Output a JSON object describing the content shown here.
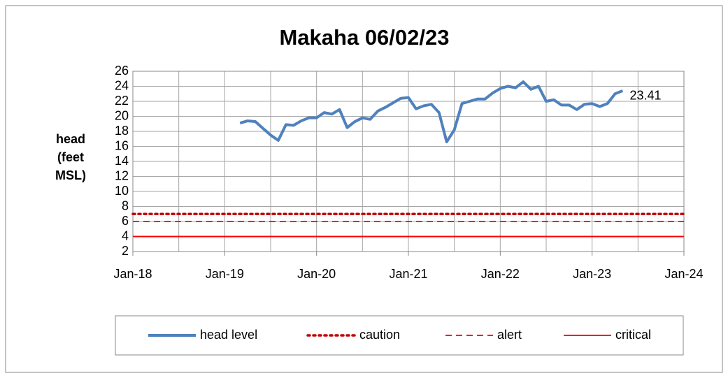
{
  "chart_data": {
    "type": "line",
    "title": "Makaha 06/02/23",
    "y_label": "head (feet MSL)",
    "x": [
      "2019-03",
      "2019-04",
      "2019-05",
      "2019-06",
      "2019-07",
      "2019-08",
      "2019-09",
      "2019-10",
      "2019-11",
      "2019-12",
      "2020-01",
      "2020-02",
      "2020-03",
      "2020-04",
      "2020-05",
      "2020-06",
      "2020-07",
      "2020-08",
      "2020-09",
      "2020-10",
      "2020-11",
      "2020-12",
      "2021-01",
      "2021-02",
      "2021-03",
      "2021-04",
      "2021-05",
      "2021-06",
      "2021-07",
      "2021-08",
      "2021-09",
      "2021-10",
      "2021-11",
      "2021-12",
      "2022-01",
      "2022-02",
      "2022-03",
      "2022-04",
      "2022-05",
      "2022-06",
      "2022-07",
      "2022-08",
      "2022-09",
      "2022-10",
      "2022-11",
      "2022-12",
      "2023-01",
      "2023-02",
      "2023-03",
      "2023-04",
      "2023-05"
    ],
    "series": [
      {
        "name": "head level",
        "color": "#4f81bd",
        "values": [
          19.1,
          19.4,
          19.3,
          18.4,
          17.5,
          16.8,
          18.9,
          18.8,
          19.4,
          19.8,
          19.8,
          20.5,
          20.3,
          20.9,
          18.5,
          19.3,
          19.8,
          19.6,
          20.7,
          21.2,
          21.8,
          22.4,
          22.5,
          21.0,
          21.4,
          21.6,
          20.5,
          16.6,
          18.2,
          21.7,
          22.0,
          22.3,
          22.3,
          23.1,
          23.7,
          24.0,
          23.8,
          24.6,
          23.6,
          24.0,
          22.0,
          22.2,
          21.5,
          21.5,
          20.9,
          21.6,
          21.7,
          21.3,
          21.7,
          23.0,
          23.41
        ]
      }
    ],
    "label_last_point": true,
    "thresholds": [
      {
        "name": "caution",
        "value": 7,
        "color": "#c00000",
        "style": "dotted"
      },
      {
        "name": "alert",
        "value": 6,
        "color": "#ff0000",
        "style": "dashed"
      },
      {
        "name": "critical",
        "value": 4,
        "color": "#ff0000",
        "style": "solid"
      }
    ],
    "xlim": [
      "2018-01",
      "2024-01"
    ],
    "xticks": [
      {
        "value": "2018-01",
        "label": "Jan-18"
      },
      {
        "value": "2019-01",
        "label": "Jan-19"
      },
      {
        "value": "2020-01",
        "label": "Jan-20"
      },
      {
        "value": "2021-01",
        "label": "Jan-21"
      },
      {
        "value": "2022-01",
        "label": "Jan-22"
      },
      {
        "value": "2023-01",
        "label": "Jan-23"
      },
      {
        "value": "2024-01",
        "label": "Jan-24"
      }
    ],
    "ylim": [
      2,
      26
    ],
    "yticks": [
      2,
      4,
      6,
      8,
      10,
      12,
      14,
      16,
      18,
      20,
      22,
      24,
      26
    ],
    "grid": true,
    "minor_x_grid": true,
    "legend": "bottom"
  }
}
